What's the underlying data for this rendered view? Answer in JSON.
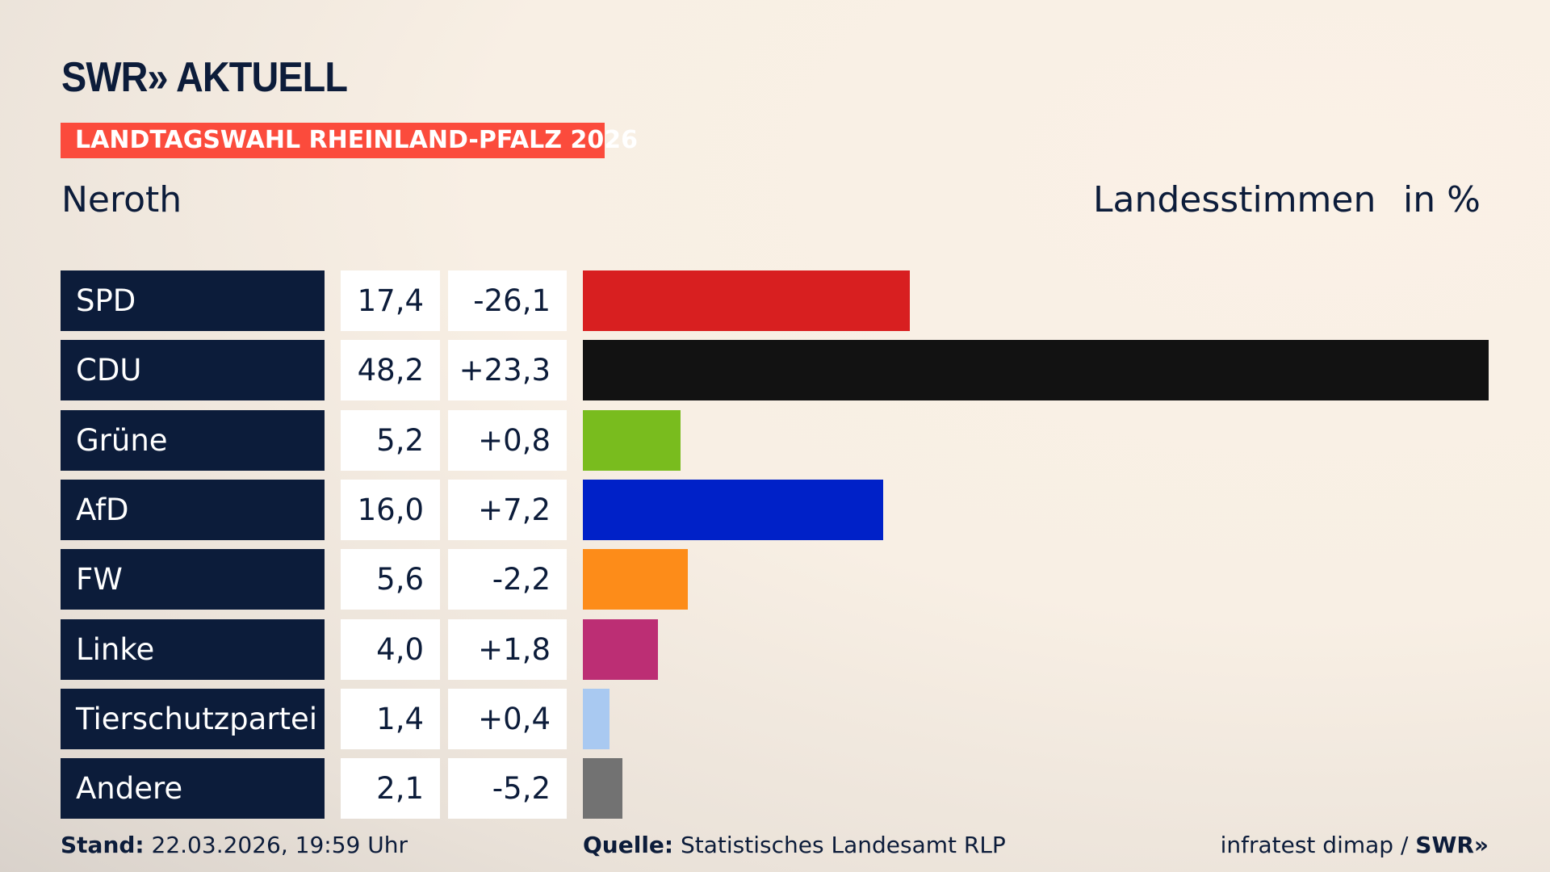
{
  "header": {
    "logo": "SWR» AKTUELL",
    "banner": "LANDTAGSWAHL RHEINLAND-PFALZ 2026",
    "place": "Neroth",
    "measure": "Landesstimmen",
    "unit": "in %"
  },
  "chart_data": {
    "type": "bar",
    "orientation": "horizontal",
    "categories": [
      "SPD",
      "CDU",
      "Grüne",
      "AfD",
      "FW",
      "Linke",
      "Tierschutzpartei",
      "Andere"
    ],
    "values": [
      "17,4",
      "48,2",
      "5,2",
      "16,0",
      "5,6",
      "4,0",
      "1,4",
      "2,1"
    ],
    "numeric_values": [
      17.4,
      48.2,
      5.2,
      16.0,
      5.6,
      4.0,
      1.4,
      2.1
    ],
    "diffs": [
      "-26,1",
      "+23,3",
      "+0,8",
      "+7,2",
      "-2,2",
      "+1,8",
      "+0,4",
      "-5,2"
    ],
    "colors": [
      "#d81f20",
      "#121212",
      "#79bc1e",
      "#0021c8",
      "#fd8c19",
      "#bc2e74",
      "#a9c9f1",
      "#727272"
    ],
    "ylabel": "Landesstimmen",
    "unit": "in %"
  },
  "footer": {
    "stand_label": "Stand:",
    "stand": "22.03.2026, 19:59 Uhr",
    "source_label": "Quelle:",
    "source": "Statistisches Landesamt RLP",
    "credit": "infratest dimap / ",
    "credit_logo": "SWR»"
  }
}
